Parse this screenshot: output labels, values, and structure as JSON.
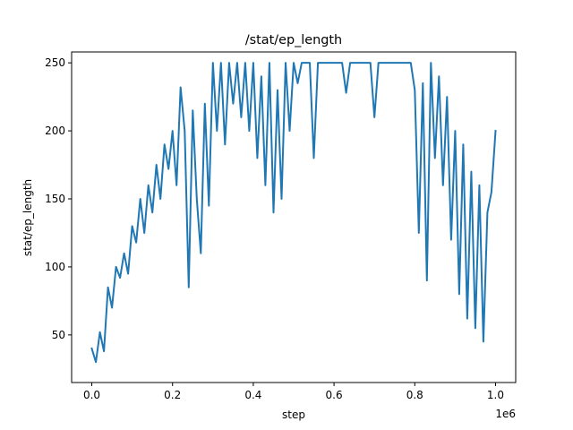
{
  "chart_data": {
    "type": "line",
    "title": "/stat/ep_length",
    "xlabel": "step",
    "ylabel": "stat/ep_length",
    "x_offset_label": "1e6",
    "xlim": [
      -50000,
      1050000
    ],
    "ylim": [
      15,
      258
    ],
    "x_ticks": [
      0,
      200000,
      400000,
      600000,
      800000,
      1000000
    ],
    "x_tick_labels": [
      "0.0",
      "0.2",
      "0.4",
      "0.6",
      "0.8",
      "1.0"
    ],
    "y_ticks": [
      50,
      100,
      150,
      200,
      250
    ],
    "y_tick_labels": [
      "50",
      "100",
      "150",
      "200",
      "250"
    ],
    "grid": false,
    "series": [
      {
        "color": "#1f77b4",
        "x": [
          0,
          10000,
          20000,
          30000,
          40000,
          50000,
          60000,
          70000,
          80000,
          90000,
          100000,
          110000,
          120000,
          130000,
          140000,
          150000,
          160000,
          170000,
          180000,
          190000,
          200000,
          210000,
          220000,
          230000,
          240000,
          250000,
          260000,
          270000,
          280000,
          290000,
          300000,
          310000,
          320000,
          330000,
          340000,
          350000,
          360000,
          370000,
          380000,
          390000,
          400000,
          410000,
          420000,
          430000,
          440000,
          450000,
          460000,
          470000,
          480000,
          490000,
          500000,
          510000,
          520000,
          530000,
          540000,
          550000,
          560000,
          570000,
          580000,
          590000,
          600000,
          610000,
          620000,
          630000,
          640000,
          650000,
          660000,
          670000,
          680000,
          690000,
          700000,
          710000,
          720000,
          730000,
          740000,
          750000,
          760000,
          770000,
          780000,
          790000,
          800000,
          810000,
          820000,
          830000,
          840000,
          850000,
          860000,
          870000,
          880000,
          890000,
          900000,
          910000,
          920000,
          930000,
          940000,
          950000,
          960000,
          970000,
          980000,
          990000,
          1000000
        ],
        "y": [
          40,
          30,
          52,
          38,
          85,
          70,
          100,
          92,
          110,
          95,
          130,
          118,
          150,
          125,
          160,
          140,
          175,
          150,
          190,
          172,
          200,
          160,
          232,
          200,
          85,
          215,
          150,
          110,
          220,
          145,
          250,
          200,
          250,
          190,
          250,
          220,
          250,
          210,
          250,
          200,
          250,
          180,
          240,
          160,
          250,
          140,
          230,
          150,
          250,
          200,
          250,
          235,
          250,
          250,
          250,
          180,
          250,
          250,
          250,
          250,
          250,
          250,
          250,
          228,
          250,
          250,
          250,
          250,
          250,
          250,
          210,
          250,
          250,
          250,
          250,
          250,
          250,
          250,
          250,
          250,
          230,
          125,
          235,
          90,
          250,
          180,
          240,
          160,
          225,
          120,
          200,
          80,
          190,
          62,
          170,
          55,
          160,
          45,
          140,
          155,
          200
        ]
      }
    ]
  }
}
